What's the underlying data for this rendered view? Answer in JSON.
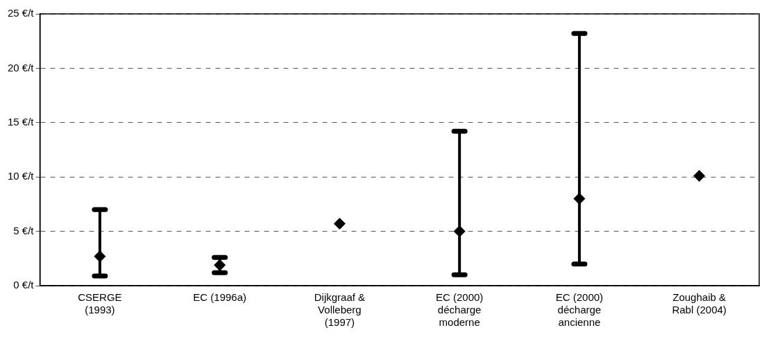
{
  "chart_data": {
    "type": "scatter",
    "categories": [
      "CSERGE (1993)",
      "EC (1996a)",
      "Dijkgraaf & Volleberg (1997)",
      "EC (2000) décharge moderne",
      "EC (2000) décharge ancienne",
      "Zoughaib & Rabl (2004)"
    ],
    "values": [
      2.7,
      1.9,
      5.7,
      5.0,
      8.0,
      10.1
    ],
    "errors": [
      [
        0.9,
        7.0
      ],
      [
        1.2,
        2.6
      ],
      null,
      [
        1.0,
        14.2
      ],
      [
        2.0,
        23.2
      ],
      null
    ],
    "color": "#000000",
    "marker": "diamond",
    "grid": "y",
    "legend": false,
    "ylim": [
      0,
      25
    ],
    "yticks": [
      {
        "value": 0,
        "label": "0 €/t"
      },
      {
        "value": 5,
        "label": "5 €/t"
      },
      {
        "value": 10,
        "label": "10 €/t"
      },
      {
        "value": 15,
        "label": "15 €/t"
      },
      {
        "value": 20,
        "label": "20 €/t"
      },
      {
        "value": 25,
        "label": "25 €/t"
      }
    ]
  }
}
